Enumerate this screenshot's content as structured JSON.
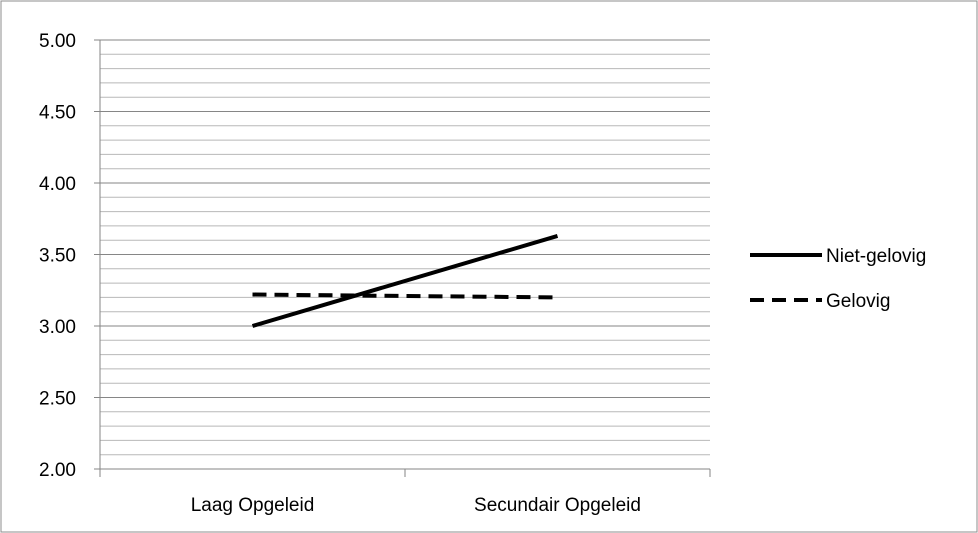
{
  "chart_data": {
    "type": "line",
    "title": "",
    "xlabel": "",
    "ylabel": "",
    "categories": [
      "Laag Opgeleid",
      "Secundair Opgeleid"
    ],
    "ylim": [
      2.0,
      5.0
    ],
    "yticks": [
      "2.00",
      "2.50",
      "3.00",
      "3.50",
      "4.00",
      "4.50",
      "5.00"
    ],
    "y_minor_step": 0.1,
    "grid": true,
    "legend_position": "right",
    "series": [
      {
        "name": "Niet-gelovig",
        "values": [
          3.0,
          3.63
        ],
        "style": "solid",
        "color": "#000000"
      },
      {
        "name": "Gelovig",
        "values": [
          3.22,
          3.2
        ],
        "style": "dashed",
        "color": "#000000"
      }
    ]
  }
}
